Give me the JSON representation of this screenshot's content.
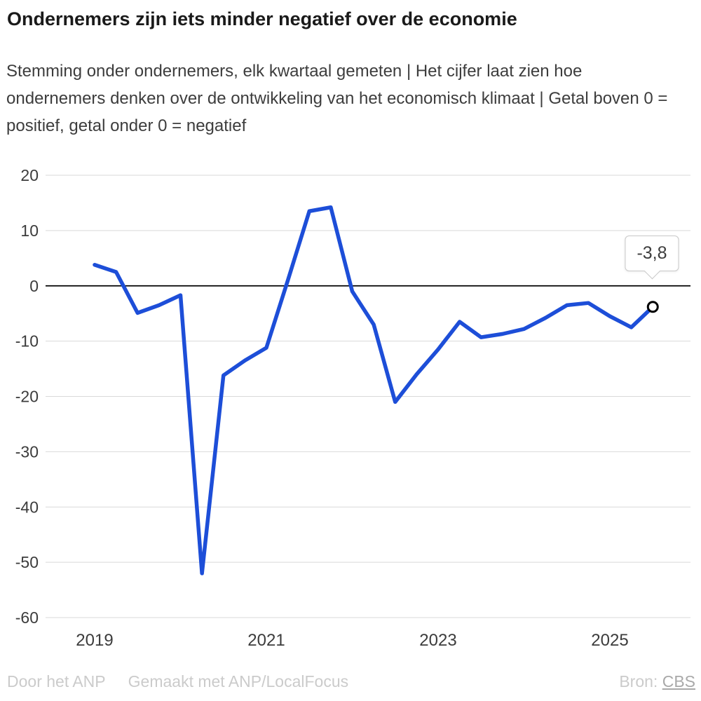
{
  "header": {
    "title": "Ondernemers zijn iets minder negatief over de economie",
    "subtitle": "Stemming onder ondernemers, elk kwartaal gemeten | Het cijfer laat zien hoe ondernemers denken over de ontwikkeling van het economisch klimaat | Getal boven 0 = positief, getal onder 0 = negatief"
  },
  "chart_data": {
    "type": "line",
    "title": "Ondernemers zijn iets minder negatief over de economie",
    "categories": [
      "2019 K1",
      "2019 K2",
      "2019 K3",
      "2019 K4",
      "2020 K1",
      "2020 K2",
      "2020 K3",
      "2020 K4",
      "2021 K1",
      "2021 K2",
      "2021 K3",
      "2021 K4",
      "2022 K1",
      "2022 K2",
      "2022 K3",
      "2022 K4",
      "2023 K1",
      "2023 K2",
      "2023 K3",
      "2023 K4",
      "2024 K1",
      "2024 K2",
      "2024 K3",
      "2024 K4",
      "2025 K1",
      "2025 K2",
      "2025 K3"
    ],
    "values": [
      3.8,
      2.5,
      -4.9,
      -3.5,
      -1.7,
      -52,
      -16.2,
      -13.5,
      -11.2,
      1,
      13.5,
      14.2,
      -1,
      -7,
      -21,
      -16,
      -11.5,
      -6.5,
      -9.3,
      -8.7,
      -7.8,
      -5.8,
      -3.5,
      -3.1,
      -5.5,
      -7.5,
      -3.8
    ],
    "x_ticks": [
      {
        "label": "2019",
        "quarter_index": 0
      },
      {
        "label": "2021",
        "quarter_index": 8
      },
      {
        "label": "2023",
        "quarter_index": 16
      },
      {
        "label": "2025",
        "quarter_index": 24
      }
    ],
    "y_ticks": [
      20,
      10,
      0,
      -10,
      -20,
      -30,
      -40,
      -50,
      -60
    ],
    "ylim": [
      -60,
      20
    ],
    "grid": "horizontal",
    "zero_line": true,
    "legend": "none",
    "last_point": {
      "value": -3.8,
      "label": "-3,8"
    },
    "colors": {
      "line": "#1d4ed8",
      "grid": "#d9d9d9",
      "zero_line": "#000000",
      "axis_text": "#3c3c3c",
      "marker_fill": "#ffffff",
      "marker_stroke": "#000000"
    }
  },
  "footer": {
    "credit_1": "Door het ANP",
    "credit_2": "Gemaakt met ANP/LocalFocus",
    "source_label": "Bron:",
    "source_link": "CBS"
  }
}
